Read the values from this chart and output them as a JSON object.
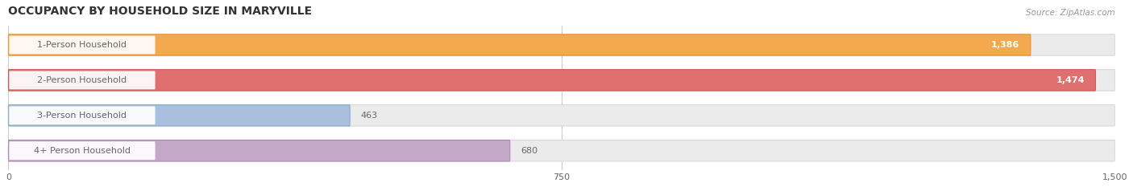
{
  "title": "OCCUPANCY BY HOUSEHOLD SIZE IN MARYVILLE",
  "source": "Source: ZipAtlas.com",
  "categories": [
    "1-Person Household",
    "2-Person Household",
    "3-Person Household",
    "4+ Person Household"
  ],
  "values": [
    1386,
    1474,
    463,
    680
  ],
  "bar_colors": [
    "#F5A94E",
    "#E07070",
    "#AABFDD",
    "#C4A8C8"
  ],
  "bar_edge_colors": [
    "#E8943A",
    "#CC5858",
    "#8AAACE",
    "#B088B8"
  ],
  "bg_color": "#ffffff",
  "bar_bg_color": "#ebebeb",
  "bar_bg_edge_color": "#d8d8d8",
  "xlim_max": 1500,
  "xticks": [
    0,
    750,
    1500
  ],
  "label_color": "#666666",
  "value_inside_color": "#ffffff",
  "value_outside_color": "#666666",
  "title_color": "#333333",
  "source_color": "#999999",
  "inside_threshold": 700
}
